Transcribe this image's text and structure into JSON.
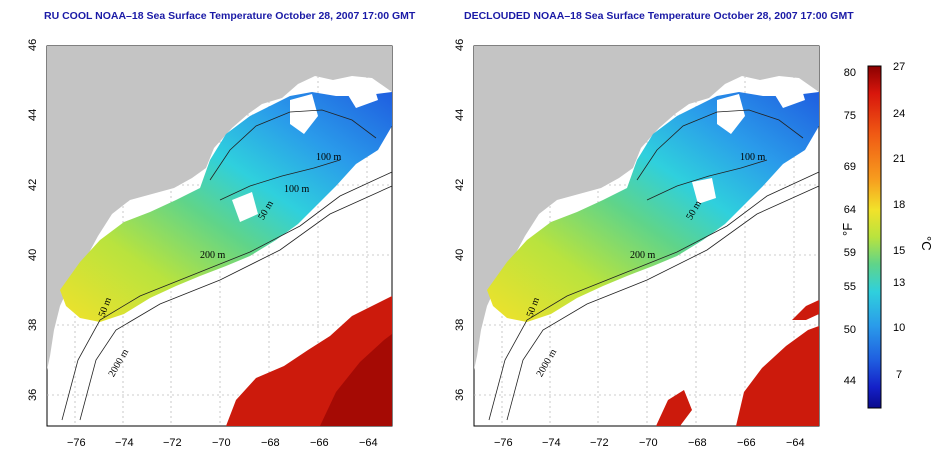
{
  "panels": [
    {
      "title": "RU COOL NOAA–18 Sea Surface Temperature October 28, 2007 17:00 GMT",
      "contours": [
        "100 m",
        "100 m",
        "50 m",
        "200 m",
        "50 m",
        "2000 m"
      ]
    },
    {
      "title": "DECLOUDED NOAA–18 Sea Surface Temperature October 28, 2007 17:00 GMT",
      "contours": [
        "100 m",
        "50 m",
        "200 m",
        "50 m",
        "2000 m"
      ]
    }
  ],
  "axes": {
    "x_ticks": [
      "−76",
      "−74",
      "−72",
      "−70",
      "−68",
      "−66",
      "−64"
    ],
    "y_ticks": [
      "36",
      "38",
      "40",
      "42",
      "44",
      "46"
    ]
  },
  "colorbar": {
    "fahrenheit_ticks": [
      "80",
      "75",
      "69",
      "64",
      "59",
      "55",
      "50",
      "44"
    ],
    "celsius_ticks": [
      "27",
      "24",
      "21",
      "18",
      "15",
      "13",
      "10",
      "7"
    ],
    "fahrenheit_unit": "°F",
    "celsius_unit": "°C",
    "colors": [
      "#8b0000",
      "#d8160c",
      "#f05a14",
      "#f79c1e",
      "#f2e22a",
      "#b9e33e",
      "#5fd48a",
      "#2fd0dd",
      "#2a9bea",
      "#1f5ee0",
      "#1420c8",
      "#0a0a8c"
    ]
  },
  "colors": {
    "land": "#c4c4c4",
    "title": "#1a1aa6"
  }
}
